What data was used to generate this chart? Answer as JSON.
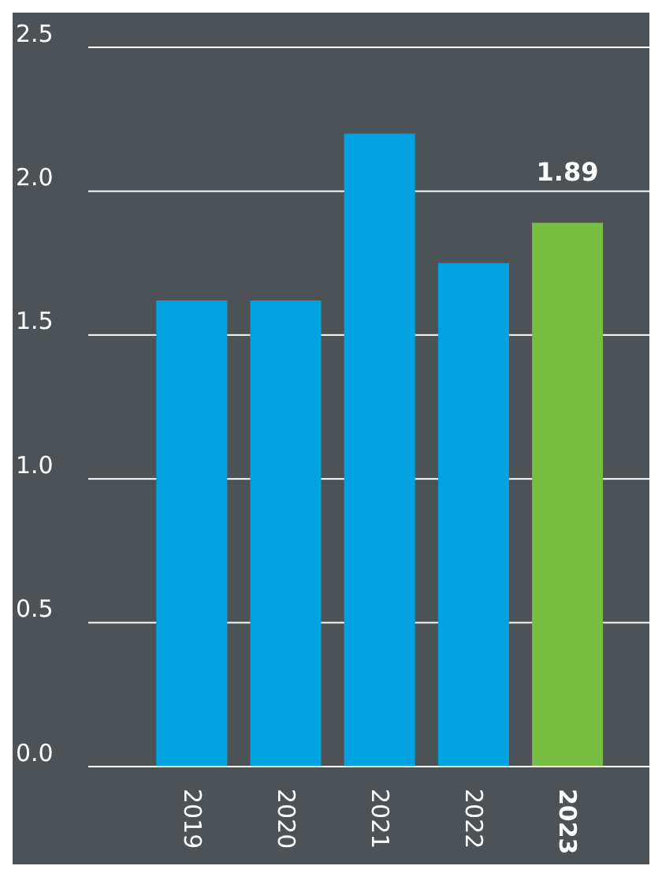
{
  "chart_data": {
    "type": "bar",
    "categories": [
      "2019",
      "2020",
      "2021",
      "2022",
      "2023"
    ],
    "values": [
      1.62,
      1.62,
      2.2,
      1.75,
      1.89
    ],
    "colors": [
      "#00a3e0",
      "#00a3e0",
      "#00a3e0",
      "#00a3e0",
      "#78be43"
    ],
    "value_labels": [
      null,
      null,
      null,
      null,
      "1.89"
    ],
    "ylim": [
      0,
      2.5
    ],
    "yticks": [
      {
        "value": 0,
        "label": "0.0"
      },
      0.5,
      {
        "value": 1,
        "label": "1.0"
      },
      1.5,
      {
        "value": 2,
        "label": "2.0"
      },
      2.5
    ],
    "grid": "y"
  }
}
